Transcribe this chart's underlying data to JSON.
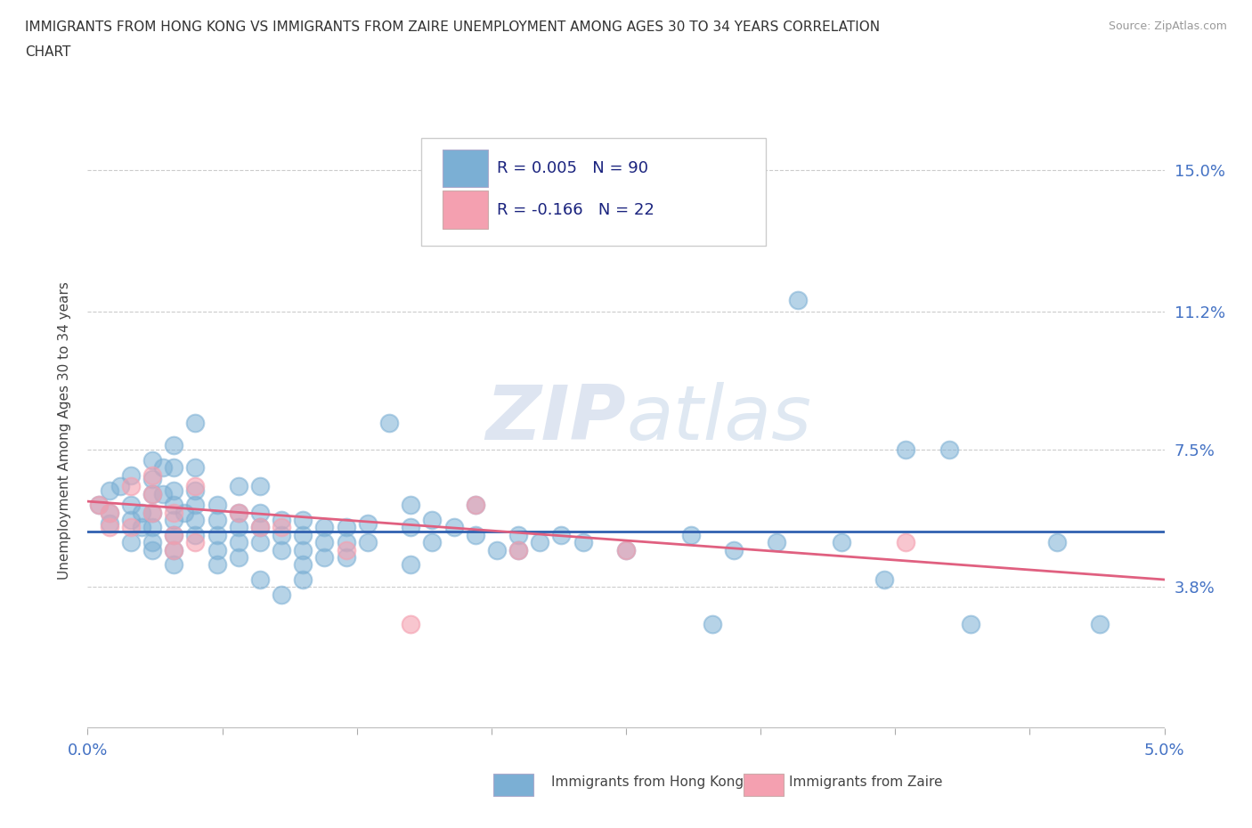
{
  "title_line1": "IMMIGRANTS FROM HONG KONG VS IMMIGRANTS FROM ZAIRE UNEMPLOYMENT AMONG AGES 30 TO 34 YEARS CORRELATION",
  "title_line2": "CHART",
  "source_text": "Source: ZipAtlas.com",
  "ylabel": "Unemployment Among Ages 30 to 34 years",
  "xlim": [
    0.0,
    0.05
  ],
  "ylim": [
    0.0,
    0.16
  ],
  "ytick_labels": [
    "3.8%",
    "7.5%",
    "11.2%",
    "15.0%"
  ],
  "ytick_values": [
    0.038,
    0.075,
    0.112,
    0.15
  ],
  "background_color": "#ffffff",
  "hk_color": "#7bafd4",
  "zaire_color": "#f4a0b0",
  "hk_line_color": "#3060b0",
  "zaire_line_color": "#e06080",
  "hk_scatter": [
    [
      0.0005,
      0.06
    ],
    [
      0.001,
      0.064
    ],
    [
      0.001,
      0.058
    ],
    [
      0.001,
      0.055
    ],
    [
      0.0015,
      0.065
    ],
    [
      0.002,
      0.068
    ],
    [
      0.002,
      0.06
    ],
    [
      0.002,
      0.056
    ],
    [
      0.002,
      0.05
    ],
    [
      0.0025,
      0.058
    ],
    [
      0.0025,
      0.054
    ],
    [
      0.003,
      0.072
    ],
    [
      0.003,
      0.067
    ],
    [
      0.003,
      0.063
    ],
    [
      0.003,
      0.058
    ],
    [
      0.003,
      0.054
    ],
    [
      0.003,
      0.05
    ],
    [
      0.003,
      0.048
    ],
    [
      0.0035,
      0.07
    ],
    [
      0.0035,
      0.063
    ],
    [
      0.004,
      0.076
    ],
    [
      0.004,
      0.07
    ],
    [
      0.004,
      0.064
    ],
    [
      0.004,
      0.06
    ],
    [
      0.004,
      0.056
    ],
    [
      0.004,
      0.052
    ],
    [
      0.004,
      0.048
    ],
    [
      0.004,
      0.044
    ],
    [
      0.0045,
      0.058
    ],
    [
      0.005,
      0.082
    ],
    [
      0.005,
      0.07
    ],
    [
      0.005,
      0.064
    ],
    [
      0.005,
      0.06
    ],
    [
      0.005,
      0.056
    ],
    [
      0.005,
      0.052
    ],
    [
      0.006,
      0.06
    ],
    [
      0.006,
      0.056
    ],
    [
      0.006,
      0.052
    ],
    [
      0.006,
      0.048
    ],
    [
      0.006,
      0.044
    ],
    [
      0.007,
      0.065
    ],
    [
      0.007,
      0.058
    ],
    [
      0.007,
      0.054
    ],
    [
      0.007,
      0.05
    ],
    [
      0.007,
      0.046
    ],
    [
      0.008,
      0.065
    ],
    [
      0.008,
      0.058
    ],
    [
      0.008,
      0.054
    ],
    [
      0.008,
      0.05
    ],
    [
      0.008,
      0.04
    ],
    [
      0.009,
      0.056
    ],
    [
      0.009,
      0.052
    ],
    [
      0.009,
      0.048
    ],
    [
      0.009,
      0.036
    ],
    [
      0.01,
      0.056
    ],
    [
      0.01,
      0.052
    ],
    [
      0.01,
      0.048
    ],
    [
      0.01,
      0.044
    ],
    [
      0.01,
      0.04
    ],
    [
      0.011,
      0.054
    ],
    [
      0.011,
      0.05
    ],
    [
      0.011,
      0.046
    ],
    [
      0.012,
      0.054
    ],
    [
      0.012,
      0.05
    ],
    [
      0.012,
      0.046
    ],
    [
      0.013,
      0.055
    ],
    [
      0.013,
      0.05
    ],
    [
      0.014,
      0.082
    ],
    [
      0.015,
      0.06
    ],
    [
      0.015,
      0.054
    ],
    [
      0.015,
      0.044
    ],
    [
      0.016,
      0.056
    ],
    [
      0.016,
      0.05
    ],
    [
      0.017,
      0.054
    ],
    [
      0.018,
      0.06
    ],
    [
      0.018,
      0.052
    ],
    [
      0.019,
      0.048
    ],
    [
      0.02,
      0.052
    ],
    [
      0.02,
      0.048
    ],
    [
      0.021,
      0.05
    ],
    [
      0.022,
      0.052
    ],
    [
      0.023,
      0.05
    ],
    [
      0.025,
      0.048
    ],
    [
      0.028,
      0.052
    ],
    [
      0.029,
      0.028
    ],
    [
      0.03,
      0.048
    ],
    [
      0.032,
      0.05
    ],
    [
      0.033,
      0.115
    ],
    [
      0.035,
      0.05
    ],
    [
      0.037,
      0.04
    ],
    [
      0.038,
      0.075
    ],
    [
      0.04,
      0.075
    ],
    [
      0.041,
      0.028
    ],
    [
      0.045,
      0.05
    ],
    [
      0.047,
      0.028
    ]
  ],
  "zaire_scatter": [
    [
      0.0005,
      0.06
    ],
    [
      0.001,
      0.058
    ],
    [
      0.001,
      0.054
    ],
    [
      0.002,
      0.065
    ],
    [
      0.002,
      0.054
    ],
    [
      0.003,
      0.068
    ],
    [
      0.003,
      0.063
    ],
    [
      0.003,
      0.058
    ],
    [
      0.004,
      0.058
    ],
    [
      0.004,
      0.052
    ],
    [
      0.004,
      0.048
    ],
    [
      0.005,
      0.065
    ],
    [
      0.005,
      0.05
    ],
    [
      0.007,
      0.058
    ],
    [
      0.008,
      0.054
    ],
    [
      0.009,
      0.054
    ],
    [
      0.012,
      0.048
    ],
    [
      0.015,
      0.028
    ],
    [
      0.018,
      0.06
    ],
    [
      0.02,
      0.048
    ],
    [
      0.025,
      0.048
    ],
    [
      0.038,
      0.05
    ]
  ],
  "hk_trend_x0": 0.0,
  "hk_trend_x1": 0.05,
  "hk_trend_y0": 0.053,
  "hk_trend_y1": 0.053,
  "zaire_trend_x0": 0.0,
  "zaire_trend_x1": 0.05,
  "zaire_trend_y0": 0.061,
  "zaire_trend_y1": 0.04
}
